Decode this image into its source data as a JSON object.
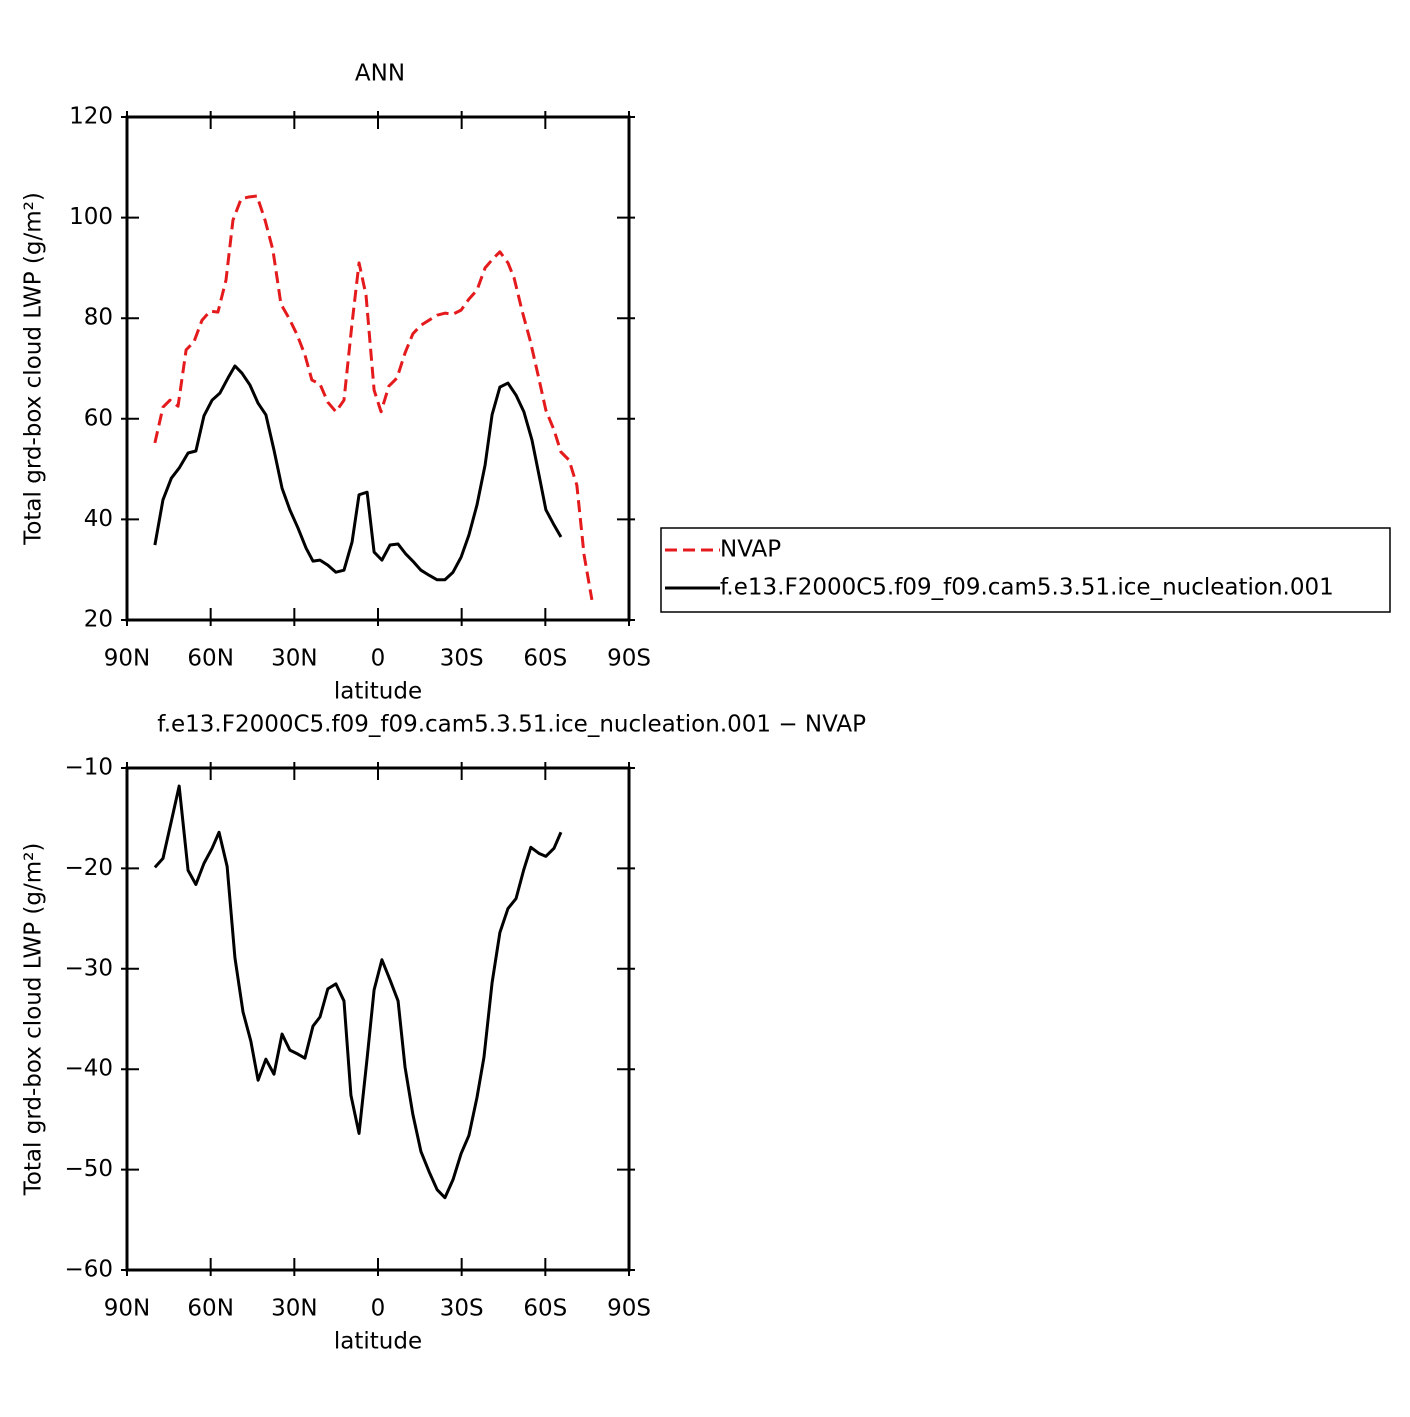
{
  "chart_data": [
    {
      "type": "line",
      "title": "ANN",
      "xlabel": "latitude",
      "ylabel": "Total grd-box cloud LWP (g/m²)",
      "xlim": [
        90,
        -90
      ],
      "xticks": [
        {
          "value": 90,
          "label": "90N"
        },
        {
          "value": 60,
          "label": "60N"
        },
        {
          "value": 30,
          "label": "30N"
        },
        0,
        {
          "value": -30,
          "label": "30S"
        },
        {
          "value": -60,
          "label": "60S"
        },
        {
          "value": -90,
          "label": "90S"
        }
      ],
      "ylim": [
        20,
        120
      ],
      "yticks": [
        20,
        40,
        60,
        80,
        100,
        120
      ],
      "series": [
        {
          "name": "NVAP",
          "color": "#e41a1c",
          "dashed": true,
          "x": [
            80,
            77.1,
            74.6,
            71.7,
            68.8,
            66,
            63.1,
            60.2,
            57.4,
            54.5,
            52,
            49.1,
            46.3,
            43.4,
            40.5,
            37.7,
            34.8,
            31.9,
            29,
            26.2,
            23.7,
            20.8,
            18,
            15.1,
            12.2,
            9.3,
            6.8,
            4.3,
            1.4,
            -1.1,
            -3.9,
            -6.8,
            -9.7,
            -12.5,
            -15.4,
            -18.3,
            -21.2,
            -24,
            -26.9,
            -29.8,
            -32.6,
            -35.5,
            -38.4,
            -41.2,
            -43.7,
            -46.6,
            -48.8,
            -51.6,
            -54.5,
            -57.4,
            -60.2,
            -63.1,
            -65.6,
            -68.5,
            -71.3,
            -73.9,
            -76.7
          ],
          "values": [
            55.2,
            62.3,
            63.7,
            62.5,
            73.7,
            75.3,
            79.6,
            81.4,
            81.2,
            87.6,
            99.5,
            103.7,
            104.1,
            104.3,
            99.5,
            93.6,
            82.8,
            80,
            76.7,
            72.7,
            67.7,
            66.9,
            63.3,
            61.4,
            63.7,
            79,
            91,
            84.6,
            65.7,
            61.4,
            66.5,
            68.1,
            73.1,
            76.9,
            78.6,
            79.6,
            80.6,
            81,
            80.8,
            81.6,
            83.8,
            85.6,
            90,
            91.8,
            93.2,
            91,
            88,
            81.6,
            75.7,
            68.7,
            61.7,
            57.8,
            53.4,
            51.8,
            46.8,
            32.9,
            24
          ]
        },
        {
          "name": "f.e13.F2000C5.f09_f09.cam5.3.51.ice_nucleation.001",
          "color": "#000000",
          "dashed": false,
          "x": [
            80,
            77.1,
            74.1,
            71.3,
            68.1,
            65.3,
            62.4,
            59.5,
            56.7,
            53.8,
            51.3,
            48.8,
            45.9,
            43,
            40.2,
            37.3,
            34.4,
            31.6,
            28.7,
            25.8,
            23.3,
            20.8,
            18,
            15.1,
            12.2,
            9.3,
            6.8,
            3.9,
            1.4,
            -1.4,
            -4.3,
            -7.2,
            -10,
            -12.5,
            -15.4,
            -18.3,
            -21.2,
            -24,
            -26.9,
            -29.8,
            -32.6,
            -35.5,
            -38.4,
            -40.9,
            -43.7,
            -46.6,
            -49.5,
            -52.3,
            -55.2,
            -58.1,
            -60.2,
            -63.1,
            -65.6
          ],
          "values": [
            34.9,
            43.9,
            48.2,
            50.2,
            53.2,
            53.6,
            60.6,
            63.7,
            65.1,
            68.1,
            70.5,
            69.1,
            66.7,
            63.1,
            60.8,
            53.8,
            46.2,
            41.9,
            38.3,
            34.3,
            31.7,
            31.9,
            30.9,
            29.5,
            29.9,
            35.5,
            44.9,
            45.4,
            33.5,
            31.9,
            34.9,
            35.1,
            33.1,
            31.7,
            29.9,
            28.9,
            28,
            28,
            29.5,
            32.5,
            36.9,
            42.9,
            50.8,
            60.8,
            66.3,
            67.1,
            64.7,
            61.4,
            55.8,
            47.8,
            41.9,
            38.9,
            36.5
          ]
        }
      ]
    },
    {
      "type": "line",
      "title": "f.e13.F2000C5.f09_f09.cam5.3.51.ice_nucleation.001 − NVAP",
      "xlabel": "latitude",
      "ylabel": "Total grd-box cloud LWP (g/m²)",
      "xlim": [
        90,
        -90
      ],
      "xticks": [
        {
          "value": 90,
          "label": "90N"
        },
        {
          "value": 60,
          "label": "60N"
        },
        {
          "value": 30,
          "label": "30N"
        },
        0,
        {
          "value": -30,
          "label": "30S"
        },
        {
          "value": -60,
          "label": "60S"
        },
        {
          "value": -90,
          "label": "90S"
        }
      ],
      "ylim": [
        -60,
        -10
      ],
      "yticks": [
        {
          "value": -60,
          "label": "−60"
        },
        {
          "value": -50,
          "label": "−50"
        },
        {
          "value": -40,
          "label": "−40"
        },
        {
          "value": -30,
          "label": "−30"
        },
        {
          "value": -20,
          "label": "−20"
        },
        {
          "value": -10,
          "label": "−10"
        }
      ],
      "color": "#000000",
      "x": [
        80,
        77.1,
        74.1,
        71.3,
        68.1,
        65.3,
        62.4,
        59.5,
        57,
        54.1,
        51.3,
        48.4,
        45.6,
        43,
        40.2,
        37.3,
        34.4,
        31.6,
        28.7,
        26.2,
        23.3,
        20.8,
        18,
        15.1,
        12.2,
        9.7,
        6.8,
        3.9,
        1.4,
        -1.4,
        -4.3,
        -7.2,
        -9.7,
        -12.5,
        -15.4,
        -18.3,
        -21.2,
        -24,
        -26.9,
        -29.8,
        -32.6,
        -35.5,
        -38,
        -40.9,
        -43.7,
        -46.6,
        -49.5,
        -52.3,
        -54.8,
        -57.7,
        -60.2,
        -63.1,
        -65.6
      ],
      "values": [
        -19.9,
        -19,
        -15.3,
        -11.8,
        -20.2,
        -21.6,
        -19.5,
        -18,
        -16.4,
        -19.8,
        -28.9,
        -34.3,
        -37.2,
        -41.1,
        -39,
        -40.5,
        -36.5,
        -38.1,
        -38.5,
        -38.9,
        -35.7,
        -34.8,
        -32,
        -31.5,
        -33.2,
        -42.6,
        -46.4,
        -38.9,
        -32.1,
        -29.1,
        -31.1,
        -33.2,
        -39.8,
        -44.5,
        -48.2,
        -50.2,
        -52,
        -52.8,
        -51,
        -48.4,
        -46.6,
        -42.8,
        -38.8,
        -31.4,
        -26.4,
        -24,
        -23,
        -20.1,
        -17.9,
        -18.5,
        -18.8,
        -18,
        -16.4
      ]
    }
  ]
}
